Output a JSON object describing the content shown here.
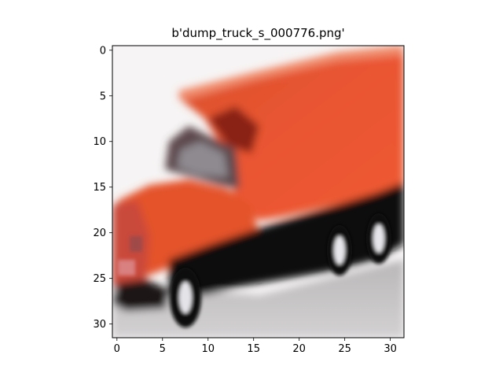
{
  "title": "b'dump_truck_s_000776.png'",
  "image": {
    "subject": "orange dump truck",
    "grid_size": [
      32,
      32
    ],
    "dominant_colors": {
      "truck_body": "#e8502a",
      "truck_dark": "#7a1a10",
      "tires": "#0d0d0d",
      "sky": "#f6f4f4",
      "ground": "#c8c6c7"
    }
  },
  "axes": {
    "x_ticks": [
      "0",
      "5",
      "10",
      "15",
      "20",
      "25",
      "30"
    ],
    "y_ticks": [
      "0",
      "5",
      "10",
      "15",
      "20",
      "25",
      "30"
    ],
    "x_range": [
      -0.5,
      31.5
    ],
    "y_range": [
      -0.5,
      31.5
    ]
  }
}
